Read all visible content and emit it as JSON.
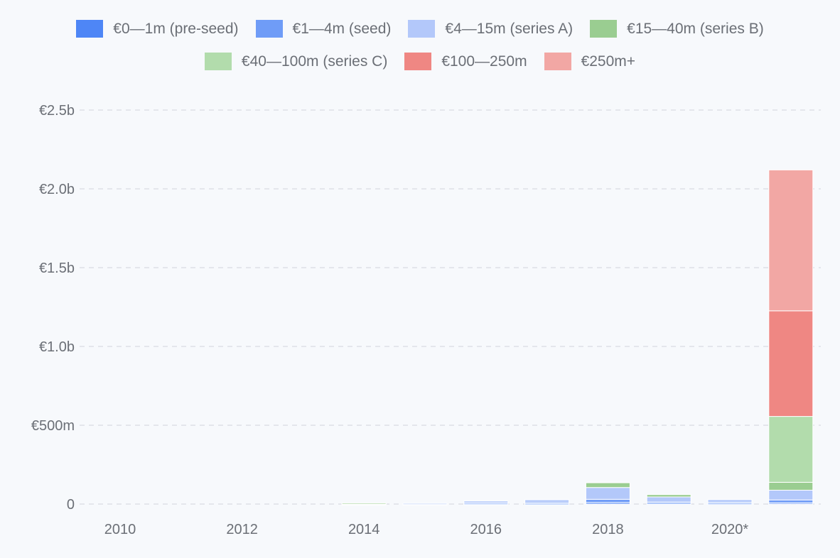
{
  "chart_data": {
    "type": "bar",
    "stacked": true,
    "categories": [
      "2010",
      "2011",
      "2012",
      "2013",
      "2014",
      "2015",
      "2016",
      "2017",
      "2018",
      "2019",
      "2020*",
      "2021"
    ],
    "x_tick_labels": [
      "2010",
      "2012",
      "2014",
      "2016",
      "2018",
      "2020*"
    ],
    "y_ticks": [
      {
        "value": 0,
        "label": "0"
      },
      {
        "value": 500,
        "label": "€500m"
      },
      {
        "value": 1000,
        "label": "€1.0b"
      },
      {
        "value": 1500,
        "label": "€1.5b"
      },
      {
        "value": 2000,
        "label": "€2.0b"
      },
      {
        "value": 2500,
        "label": "€2.5b"
      }
    ],
    "ylim": [
      0,
      2500
    ],
    "units": "EUR millions",
    "grid": true,
    "legend_position": "top",
    "series": [
      {
        "name": "€0—1m (pre-seed)",
        "color": "#4e86f6",
        "values": [
          0,
          0,
          0,
          0,
          1,
          1,
          2,
          3,
          10,
          5,
          4,
          8
        ]
      },
      {
        "name": "€1—4m (seed)",
        "color": "#6f9cf7",
        "values": [
          0,
          0,
          0,
          0,
          2,
          1,
          5,
          6,
          20,
          8,
          7,
          18
        ]
      },
      {
        "name": "€4—15m (series A)",
        "color": "#b3c8fa",
        "values": [
          0,
          0,
          0,
          0,
          2,
          2,
          12,
          18,
          75,
          32,
          17,
          62
        ]
      },
      {
        "name": "€15—40m (series B)",
        "color": "#9acd91",
        "values": [
          0,
          0,
          0,
          0,
          2,
          0,
          0,
          0,
          30,
          15,
          0,
          50
        ]
      },
      {
        "name": "€40—100m (series C)",
        "color": "#b2dcac",
        "values": [
          0,
          0,
          0,
          0,
          0,
          0,
          0,
          0,
          0,
          0,
          0,
          418
        ]
      },
      {
        "name": "€100—250m",
        "color": "#ef8783",
        "values": [
          0,
          0,
          0,
          0,
          0,
          0,
          0,
          0,
          0,
          0,
          0,
          670
        ]
      },
      {
        "name": "€250m+",
        "color": "#f2a7a4",
        "values": [
          0,
          0,
          0,
          0,
          0,
          0,
          0,
          0,
          0,
          0,
          0,
          894
        ]
      }
    ]
  }
}
